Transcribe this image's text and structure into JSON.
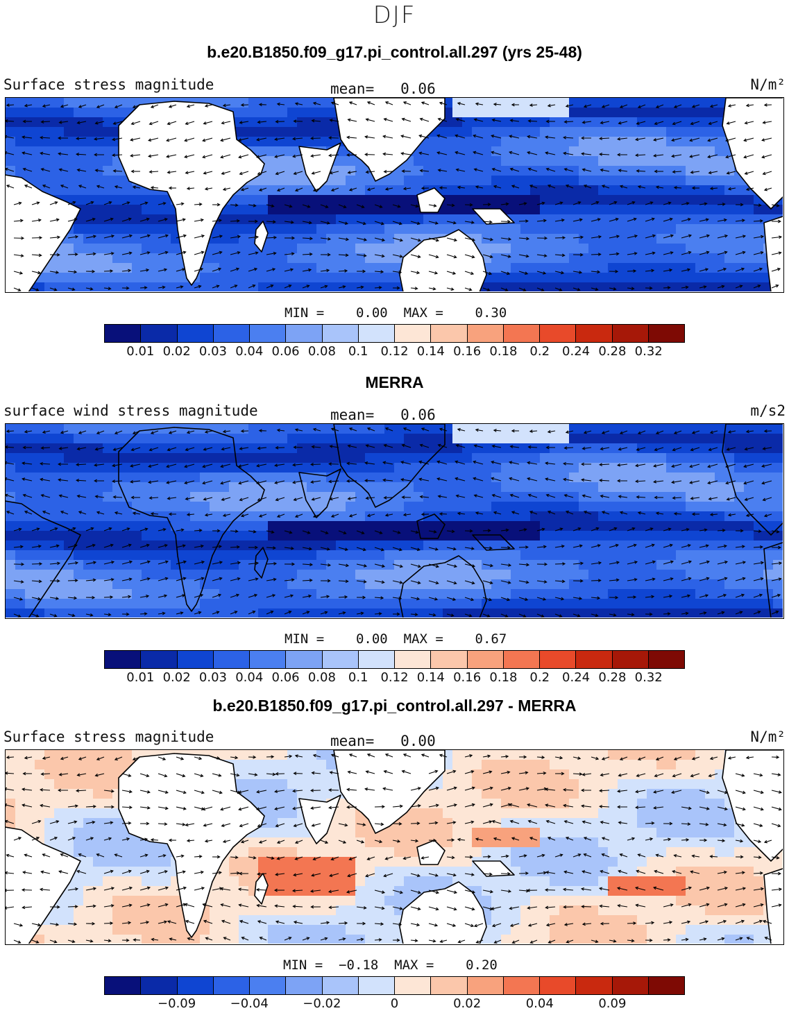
{
  "figure": {
    "title": "DJF"
  },
  "panels": [
    {
      "id": "model",
      "title": "b.e20.B1850.f09_g17.pi_control.all.297 (yrs 25-48)",
      "left_label": "Surface stress magnitude",
      "mean_label": "mean=   0.06",
      "units": "N/m²",
      "minmax": "MIN =    0.00  MAX =    0.30",
      "type": "seq",
      "colorbar_ticks": [
        "0.01",
        "0.02",
        "0.03",
        "0.04",
        "0.06",
        "0.08",
        "0.1",
        "0.12",
        "0.14",
        "0.16",
        "0.18",
        "0.2",
        "0.24",
        "0.28",
        "0.32"
      ]
    },
    {
      "id": "obs",
      "title": "MERRA",
      "left_label": "surface wind stress magnitude",
      "mean_label": "mean=   0.06",
      "units": "m/s2",
      "minmax": "MIN =    0.00  MAX =    0.67",
      "type": "seq",
      "colorbar_ticks": [
        "0.01",
        "0.02",
        "0.03",
        "0.04",
        "0.06",
        "0.08",
        "0.1",
        "0.12",
        "0.14",
        "0.16",
        "0.18",
        "0.2",
        "0.24",
        "0.28",
        "0.32"
      ]
    },
    {
      "id": "diff",
      "title": "b.e20.B1850.f09_g17.pi_control.all.297 - MERRA",
      "left_label": "Surface stress magnitude",
      "mean_label": "mean=   0.00",
      "units": "N/m²",
      "minmax": "MIN =  −0.18  MAX =    0.20",
      "type": "div",
      "colorbar_ticks": [
        "−0.09",
        "−0.04",
        "−0.02",
        "0",
        "0.02",
        "0.04",
        "0.09"
      ]
    }
  ],
  "colorbar_colors": [
    "#08107a",
    "#0a2aa8",
    "#0f45d2",
    "#2c62e6",
    "#4b7ff0",
    "#7da3f5",
    "#a9c4fa",
    "#d2e2fc",
    "#fde6d6",
    "#fbc7ab",
    "#f8a27d",
    "#f37652",
    "#e84a2a",
    "#c9290f",
    "#a61808",
    "#7e0a04"
  ],
  "land_color": "#ffffff",
  "vector_color": "#000000"
}
